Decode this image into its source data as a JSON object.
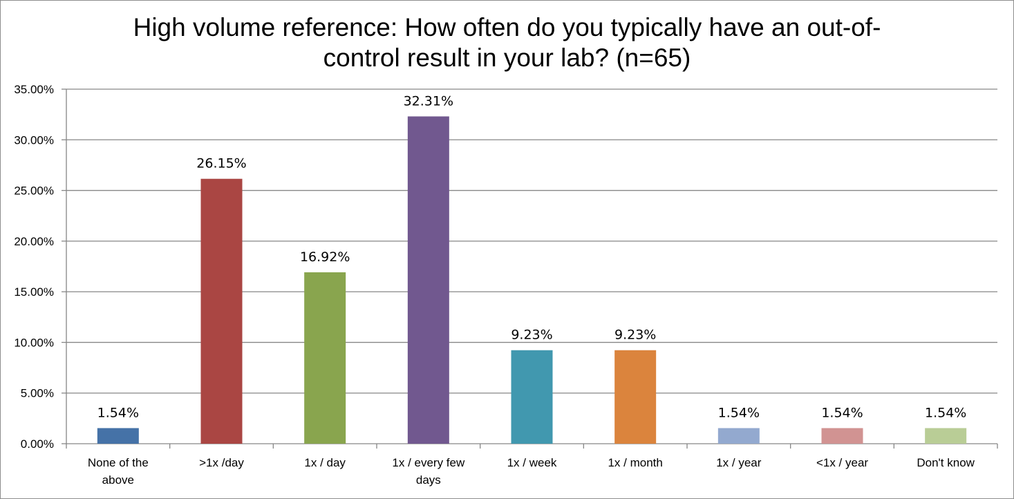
{
  "chart_data": {
    "type": "bar",
    "title_lines": [
      "High volume reference: How often do you typically have an out-of-",
      "control result in your lab? (n=65)"
    ],
    "categories": [
      [
        "None of the",
        "above"
      ],
      [
        ">1x /day"
      ],
      [
        "1x / day"
      ],
      [
        "1x / every few",
        "days"
      ],
      [
        "1x / week"
      ],
      [
        "1x / month"
      ],
      [
        "1x / year"
      ],
      [
        "<1x / year"
      ],
      [
        "Don't know"
      ]
    ],
    "values": [
      1.54,
      26.15,
      16.92,
      32.31,
      9.23,
      9.23,
      1.54,
      1.54,
      1.54
    ],
    "data_labels": [
      "1.54%",
      "26.15%",
      "16.92%",
      "32.31%",
      "9.23%",
      "9.23%",
      "1.54%",
      "1.54%",
      "1.54%"
    ],
    "colors": [
      "#4572a7",
      "#aa4643",
      "#89a54e",
      "#71588f",
      "#4198af",
      "#db843d",
      "#93a9cf",
      "#d19392",
      "#b9cd96"
    ],
    "ylim": [
      0,
      35
    ],
    "yticks": [
      "0.00%",
      "5.00%",
      "10.00%",
      "15.00%",
      "20.00%",
      "25.00%",
      "30.00%",
      "35.00%"
    ],
    "grid": true,
    "legend": "none"
  }
}
